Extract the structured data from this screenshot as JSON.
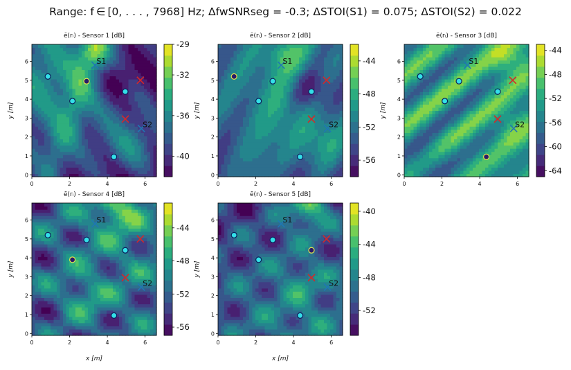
{
  "figure": {
    "suptitle": "Range: f ∈ [0, . . . , 7968] Hz;  ΔfwSNRseg = -0.3;  ΔSTOI(S1) = 0.075;  ΔSTOI(S2) = 0.022"
  },
  "chart_data": [
    {
      "type": "heatmap",
      "title": "ē(rᵢ) - Sensor 1 [dB]",
      "xlabel": "",
      "ylabel": "y [m]",
      "xlim": [
        0,
        6.6
      ],
      "ylim": [
        -0.1,
        6.9
      ],
      "xticks": [
        0,
        2,
        4,
        6
      ],
      "yticks": [
        0,
        1,
        2,
        3,
        4,
        5,
        6
      ],
      "colorbar": {
        "ticks": [
          -29,
          -32,
          -36,
          -40
        ],
        "range": [
          -42,
          -29
        ]
      },
      "highlighted_sensor": 2
    },
    {
      "type": "heatmap",
      "title": "ē(rᵢ) - Sensor 2 [dB]",
      "xlabel": "",
      "ylabel": "y [m]",
      "xlim": [
        0,
        6.6
      ],
      "ylim": [
        -0.1,
        6.9
      ],
      "xticks": [
        0,
        2,
        4,
        6
      ],
      "yticks": [
        0,
        1,
        2,
        3,
        4,
        5,
        6
      ],
      "colorbar": {
        "ticks": [
          -44,
          -48,
          -52,
          -56
        ],
        "range": [
          -58,
          -42
        ]
      },
      "highlighted_sensor": 1
    },
    {
      "type": "heatmap",
      "title": "ē(rᵢ) - Sensor 3 [dB]",
      "xlabel": "",
      "ylabel": "y [m]",
      "xlim": [
        0,
        6.6
      ],
      "ylim": [
        -0.1,
        6.9
      ],
      "xticks": [
        0,
        2,
        4,
        6
      ],
      "yticks": [
        0,
        1,
        2,
        3,
        4,
        5,
        6
      ],
      "colorbar": {
        "ticks": [
          -44,
          -48,
          -52,
          -56,
          -60,
          -64
        ],
        "range": [
          -65,
          -43
        ]
      },
      "highlighted_sensor": 5
    },
    {
      "type": "heatmap",
      "title": "ē(rᵢ) - Sensor 4 [dB]",
      "xlabel": "x [m]",
      "ylabel": "y [m]",
      "xlim": [
        0,
        6.6
      ],
      "ylim": [
        -0.1,
        6.9
      ],
      "xticks": [
        0,
        2,
        4,
        6
      ],
      "yticks": [
        0,
        1,
        2,
        3,
        4,
        5,
        6
      ],
      "colorbar": {
        "ticks": [
          -44,
          -48,
          -52,
          -56
        ],
        "range": [
          -57,
          -41
        ]
      },
      "highlighted_sensor": 3
    },
    {
      "type": "heatmap",
      "title": "ē(rᵢ) - Sensor 5 [dB]",
      "xlabel": "x [m]",
      "ylabel": "y [m]",
      "xlim": [
        0,
        6.6
      ],
      "ylim": [
        -0.1,
        6.9
      ],
      "xticks": [
        0,
        2,
        4,
        6
      ],
      "yticks": [
        0,
        1,
        2,
        3,
        4,
        5,
        6
      ],
      "colorbar": {
        "ticks": [
          -40,
          -44,
          -48,
          -52
        ],
        "range": [
          -55,
          -39
        ]
      },
      "highlighted_sensor": 4
    }
  ],
  "scene": {
    "sensors": [
      {
        "x": 0.85,
        "y": 5.2
      },
      {
        "x": 2.9,
        "y": 4.95
      },
      {
        "x": 2.15,
        "y": 3.9
      },
      {
        "x": 4.95,
        "y": 4.4
      },
      {
        "x": 4.35,
        "y": 0.95
      }
    ],
    "sources": [
      {
        "label": "S1",
        "x": 3.35,
        "y": 5.8,
        "color": "#1f77b4"
      },
      {
        "label": "S2",
        "x": 5.8,
        "y": 2.45,
        "color": "#1f77b4"
      }
    ],
    "interferers": [
      {
        "x": 5.75,
        "y": 5.0,
        "color": "#d62728"
      },
      {
        "x": 4.95,
        "y": 2.95,
        "color": "#d62728"
      }
    ]
  },
  "colors": {
    "sensor_fill": "#33e0e8",
    "sensor_edge": "#0b1e5a",
    "highlight_fill": "#2a1a6a",
    "highlight_edge": "#e9e34a",
    "source_marker": "#1f77b4",
    "interferer_marker": "#d62728"
  }
}
